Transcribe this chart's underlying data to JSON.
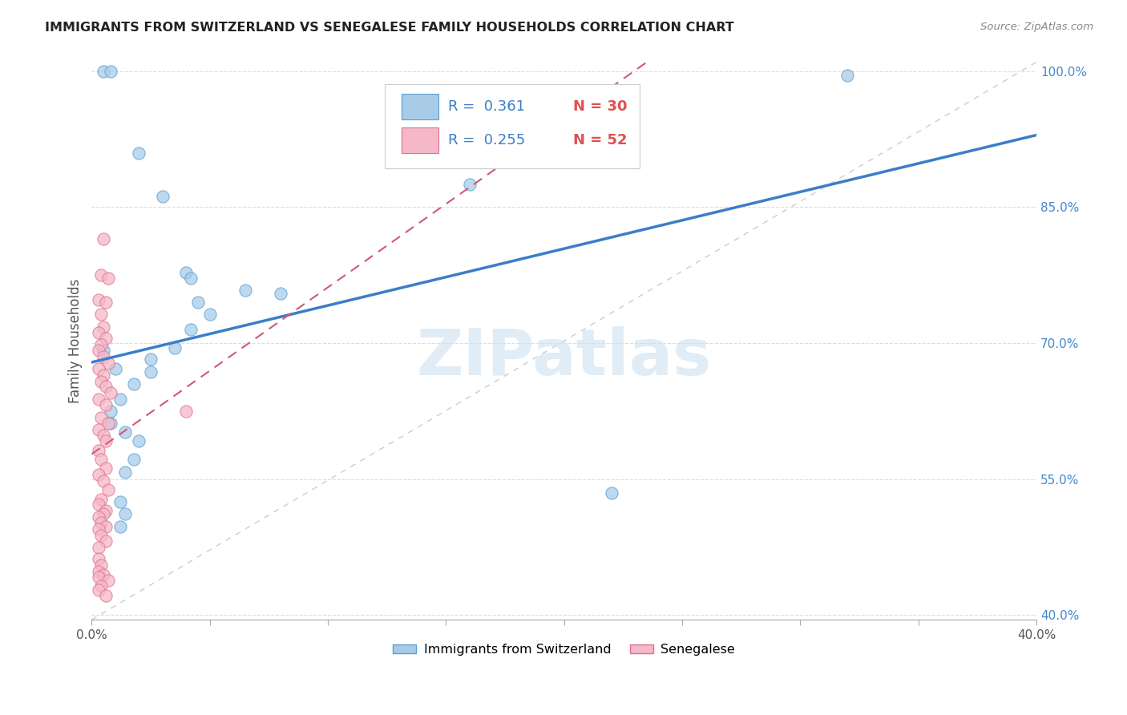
{
  "title": "IMMIGRANTS FROM SWITZERLAND VS SENEGALESE FAMILY HOUSEHOLDS CORRELATION CHART",
  "source": "Source: ZipAtlas.com",
  "ylabel": "Family Households",
  "xmin": 0.0,
  "xmax": 0.4,
  "ymin": 0.395,
  "ymax": 1.01,
  "yticks": [
    0.4,
    0.55,
    0.7,
    0.85,
    1.0
  ],
  "ytick_labels": [
    "40.0%",
    "55.0%",
    "70.0%",
    "85.0%",
    "100.0%"
  ],
  "xticks": [
    0.0,
    0.05,
    0.1,
    0.15,
    0.2,
    0.25,
    0.3,
    0.35,
    0.4
  ],
  "xtick_labels": [
    "0.0%",
    "",
    "",
    "",
    "",
    "",
    "",
    "",
    "40.0%"
  ],
  "blue_color": "#a8cce8",
  "pink_color": "#f4b8c8",
  "blue_edge_color": "#5a9fd4",
  "pink_edge_color": "#e07090",
  "blue_line_color": "#3a7ec8",
  "pink_line_color": "#d05878",
  "blue_scatter": [
    [
      0.005,
      1.0
    ],
    [
      0.008,
      1.0
    ],
    [
      0.32,
      0.995
    ],
    [
      0.02,
      0.91
    ],
    [
      0.16,
      0.875
    ],
    [
      0.03,
      0.862
    ],
    [
      0.08,
      0.755
    ],
    [
      0.04,
      0.778
    ],
    [
      0.042,
      0.772
    ],
    [
      0.065,
      0.758
    ],
    [
      0.045,
      0.745
    ],
    [
      0.05,
      0.732
    ],
    [
      0.042,
      0.715
    ],
    [
      0.035,
      0.695
    ],
    [
      0.005,
      0.692
    ],
    [
      0.025,
      0.682
    ],
    [
      0.01,
      0.672
    ],
    [
      0.025,
      0.668
    ],
    [
      0.018,
      0.655
    ],
    [
      0.012,
      0.638
    ],
    [
      0.008,
      0.625
    ],
    [
      0.008,
      0.612
    ],
    [
      0.014,
      0.602
    ],
    [
      0.02,
      0.592
    ],
    [
      0.018,
      0.572
    ],
    [
      0.014,
      0.558
    ],
    [
      0.22,
      0.535
    ],
    [
      0.012,
      0.525
    ],
    [
      0.014,
      0.512
    ],
    [
      0.012,
      0.498
    ]
  ],
  "pink_scatter": [
    [
      0.005,
      0.815
    ],
    [
      0.004,
      0.775
    ],
    [
      0.007,
      0.772
    ],
    [
      0.003,
      0.748
    ],
    [
      0.006,
      0.745
    ],
    [
      0.004,
      0.732
    ],
    [
      0.005,
      0.718
    ],
    [
      0.003,
      0.712
    ],
    [
      0.006,
      0.705
    ],
    [
      0.004,
      0.698
    ],
    [
      0.003,
      0.692
    ],
    [
      0.005,
      0.685
    ],
    [
      0.007,
      0.678
    ],
    [
      0.003,
      0.672
    ],
    [
      0.005,
      0.665
    ],
    [
      0.004,
      0.658
    ],
    [
      0.006,
      0.652
    ],
    [
      0.008,
      0.645
    ],
    [
      0.003,
      0.638
    ],
    [
      0.006,
      0.632
    ],
    [
      0.04,
      0.625
    ],
    [
      0.004,
      0.618
    ],
    [
      0.007,
      0.612
    ],
    [
      0.003,
      0.605
    ],
    [
      0.005,
      0.598
    ],
    [
      0.006,
      0.592
    ],
    [
      0.003,
      0.582
    ],
    [
      0.004,
      0.572
    ],
    [
      0.006,
      0.562
    ],
    [
      0.003,
      0.555
    ],
    [
      0.005,
      0.548
    ],
    [
      0.007,
      0.538
    ],
    [
      0.004,
      0.528
    ],
    [
      0.003,
      0.522
    ],
    [
      0.006,
      0.515
    ],
    [
      0.005,
      0.512
    ],
    [
      0.003,
      0.508
    ],
    [
      0.004,
      0.502
    ],
    [
      0.006,
      0.498
    ],
    [
      0.003,
      0.495
    ],
    [
      0.004,
      0.488
    ],
    [
      0.006,
      0.482
    ],
    [
      0.003,
      0.475
    ],
    [
      0.003,
      0.462
    ],
    [
      0.004,
      0.455
    ],
    [
      0.003,
      0.448
    ],
    [
      0.005,
      0.445
    ],
    [
      0.003,
      0.442
    ],
    [
      0.007,
      0.438
    ],
    [
      0.004,
      0.432
    ],
    [
      0.003,
      0.428
    ],
    [
      0.006,
      0.422
    ]
  ],
  "ref_line_color": "#cccccc",
  "watermark_text": "ZIPatlas",
  "watermark_color": "#cce0f0",
  "background_color": "#ffffff",
  "grid_color": "#dddddd",
  "legend_label_blue": "Immigrants from Switzerland",
  "legend_label_pink": "Senegalese",
  "legend_r1_text": "R = ",
  "legend_r1_val": "0.361",
  "legend_n1_text": "N = ",
  "legend_n1_val": "30",
  "legend_r2_text": "R = ",
  "legend_r2_val": "0.255",
  "legend_n2_text": "N = ",
  "legend_n2_val": "52",
  "axis_label_color": "#4488cc",
  "tick_color": "#555555"
}
